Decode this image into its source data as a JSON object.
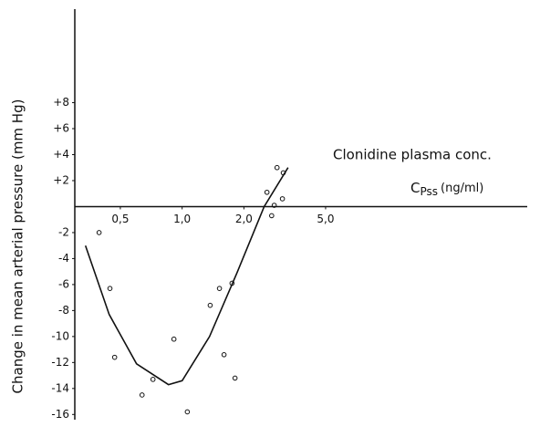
{
  "chart_data": {
    "type": "scatter",
    "y_label": "Change in mean arterial pressure (mm Hg)",
    "x_label": "Clonidine plasma conc.",
    "x_symbol": "C",
    "x_symbol_subscript": "Pss",
    "x_unit": "(ng/ml)",
    "x_log": true,
    "xlim": [
      0.3,
      48
    ],
    "ylim": [
      -16.4,
      15.2
    ],
    "xticks": [
      {
        "value": 0.5,
        "label": "0,5"
      },
      {
        "value": 1,
        "label": "1,0"
      },
      {
        "value": 2,
        "label": "2,0"
      },
      {
        "value": 5,
        "label": "5,0"
      }
    ],
    "yticks": [
      {
        "value": 8,
        "label": "+8"
      },
      {
        "value": 6,
        "label": "+6"
      },
      {
        "value": 4,
        "label": "+4"
      },
      {
        "value": 2,
        "label": "+2"
      },
      -2,
      -4,
      -6,
      -8,
      -10,
      -12,
      -14,
      -16
    ],
    "color": "#111111",
    "points": {
      "x": [
        0.394,
        0.445,
        0.469,
        0.638,
        0.721,
        0.912,
        1.06,
        1.37,
        1.52,
        1.6,
        1.75,
        1.81,
        2.59,
        2.73,
        2.81,
        2.9,
        3.08,
        3.11
      ],
      "y": [
        -2.0,
        -6.3,
        -11.6,
        -14.5,
        -13.3,
        -10.2,
        -15.8,
        -7.6,
        -6.3,
        -11.4,
        -5.9,
        -13.2,
        1.1,
        -0.7,
        0.1,
        3.0,
        0.6,
        2.6
      ]
    },
    "fit_curve": {
      "x": [
        0.338,
        0.441,
        0.6,
        0.858,
        1.0,
        1.36,
        1.85,
        2.51,
        3.28
      ],
      "y": [
        -3.0,
        -8.3,
        -12.1,
        -13.7,
        -13.4,
        -10.0,
        -5.1,
        0,
        3.0
      ]
    }
  }
}
